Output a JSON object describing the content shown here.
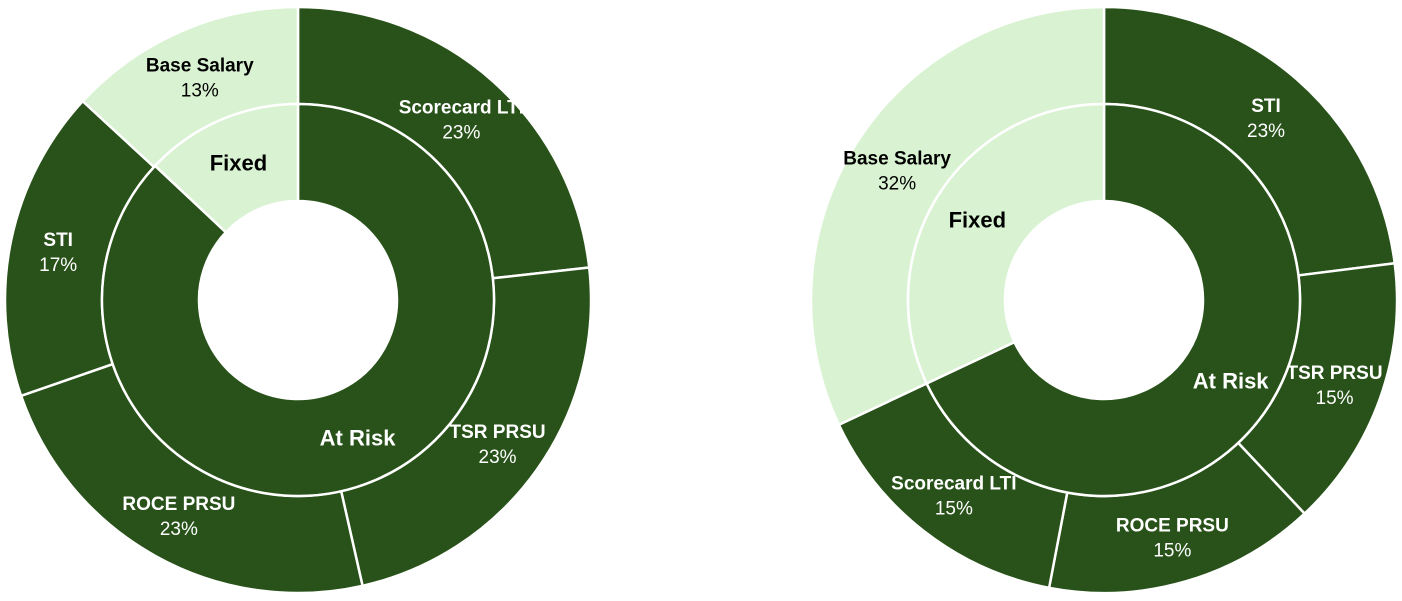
{
  "colors": {
    "dark": "#285219",
    "light": "#d9f2d2",
    "stroke": "#ffffff",
    "text_on_dark": "#ffffff",
    "text_on_light": "#000000"
  },
  "chart_data": [
    {
      "type": "pie",
      "style": "nested-donut",
      "outer": {
        "slices": [
          {
            "label": "Scorecard LTI",
            "value": 23,
            "value_label": "23%",
            "color": "dark"
          },
          {
            "label": "TSR PRSU",
            "value": 23,
            "value_label": "23%",
            "color": "dark"
          },
          {
            "label": "ROCE PRSU",
            "value": 23,
            "value_label": "23%",
            "color": "dark"
          },
          {
            "label": "STI",
            "value": 17,
            "value_label": "17%",
            "color": "dark"
          },
          {
            "label": "Base Salary",
            "value": 13,
            "value_label": "13%",
            "color": "light"
          }
        ]
      },
      "inner": {
        "slices": [
          {
            "label": "At Risk",
            "value": 87,
            "color": "dark"
          },
          {
            "label": "Fixed",
            "value": 13,
            "color": "light"
          }
        ]
      }
    },
    {
      "type": "pie",
      "style": "nested-donut",
      "outer": {
        "slices": [
          {
            "label": "STI",
            "value": 23,
            "value_label": "23%",
            "color": "dark"
          },
          {
            "label": "TSR PRSU",
            "value": 15,
            "value_label": "15%",
            "color": "dark"
          },
          {
            "label": "ROCE PRSU",
            "value": 15,
            "value_label": "15%",
            "color": "dark"
          },
          {
            "label": "Scorecard LTI",
            "value": 15,
            "value_label": "15%",
            "color": "dark"
          },
          {
            "label": "Base Salary",
            "value": 32,
            "value_label": "32%",
            "color": "light"
          }
        ]
      },
      "inner": {
        "slices": [
          {
            "label": "At Risk",
            "value": 68,
            "color": "dark"
          },
          {
            "label": "Fixed",
            "value": 32,
            "color": "light"
          }
        ]
      }
    }
  ]
}
